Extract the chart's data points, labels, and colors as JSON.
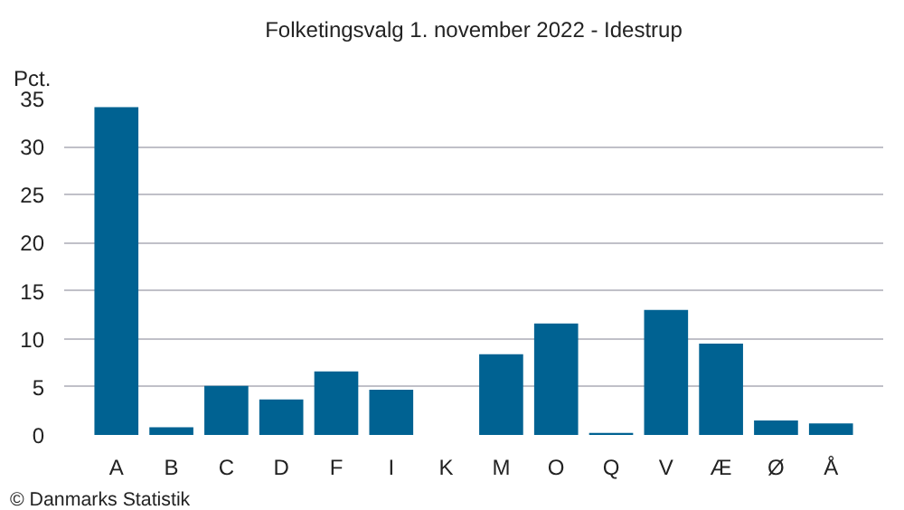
{
  "chart_data": {
    "type": "bar",
    "title": "Folketingsvalg 1. november 2022 - Idestrup",
    "ylabel": "Pct.",
    "categories": [
      "A",
      "B",
      "C",
      "D",
      "F",
      "I",
      "K",
      "M",
      "O",
      "Q",
      "V",
      "Æ",
      "Ø",
      "Å"
    ],
    "values": [
      34.1,
      0.8,
      5.1,
      3.7,
      6.6,
      4.7,
      0,
      8.4,
      11.6,
      0.2,
      13.0,
      9.5,
      1.5,
      1.2
    ],
    "color": "#006292",
    "ylim": [
      0,
      35
    ],
    "yticks": [
      0,
      5,
      10,
      15,
      20,
      25,
      30,
      35
    ],
    "grid": "y",
    "annotations": [
      "© Danmarks Statistik"
    ]
  }
}
